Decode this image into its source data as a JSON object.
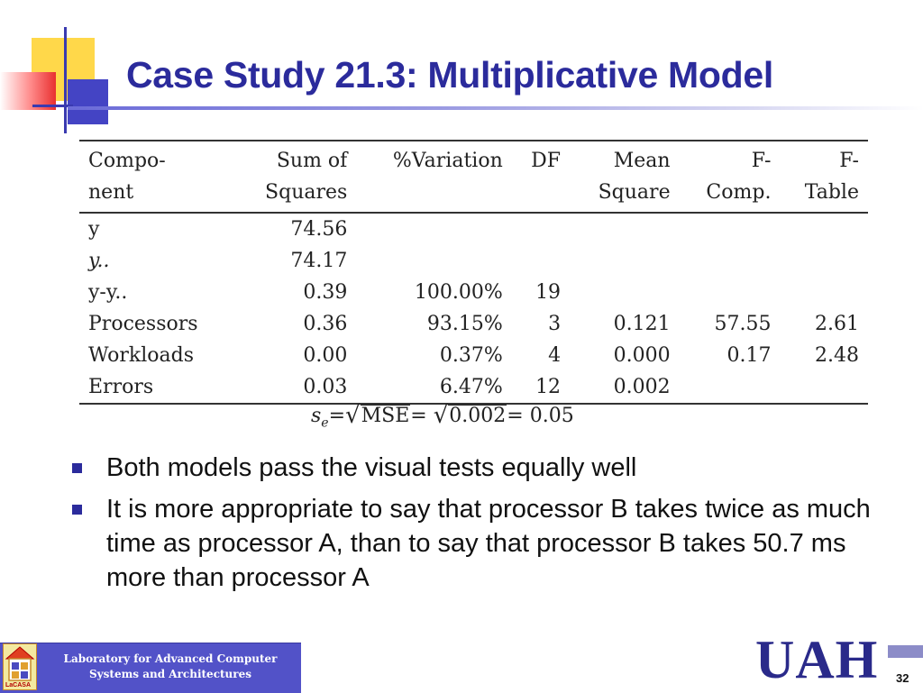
{
  "slide": {
    "title": "Case Study 21.3: Multiplicative Model",
    "page_number": "32"
  },
  "table": {
    "headers": [
      [
        "Compo-",
        "nent"
      ],
      [
        "Sum of",
        "Squares"
      ],
      [
        "%Variation",
        ""
      ],
      [
        "DF",
        ""
      ],
      [
        "Mean",
        "Square"
      ],
      [
        "F-",
        "Comp."
      ],
      [
        "F-",
        "Table"
      ]
    ],
    "rows": [
      [
        "y",
        "74.56",
        "",
        "",
        "",
        "",
        ""
      ],
      [
        "y..",
        "74.17",
        "",
        "",
        "",
        "",
        ""
      ],
      [
        "y-y..",
        "0.39",
        "100.00%",
        "19",
        "",
        "",
        ""
      ],
      [
        "Processors",
        "0.36",
        "93.15%",
        "3",
        "0.121",
        "57.55",
        "2.61"
      ],
      [
        "Workloads",
        "0.00",
        "0.37%",
        "4",
        "0.000",
        "0.17",
        "2.48"
      ],
      [
        "Errors",
        "0.03",
        "6.47%",
        "12",
        "0.002",
        "",
        ""
      ]
    ]
  },
  "formula": {
    "lhs_base": "s",
    "lhs_sub": "e",
    "eq1": "=",
    "mse": "MSE",
    "eq2": "= ",
    "value": "0.002",
    "eq3": "= 0.05"
  },
  "bullets": [
    "Both models pass the visual tests equally well",
    "It is more appropriate to say that processor B takes twice as much time as processor A, than to say that processor B takes 50.7 ms more than processor A"
  ],
  "footer": {
    "lab_line1": "Laboratory for Advanced Computer",
    "lab_line2": "Systems and Architectures",
    "logo_text": "LaCASA",
    "uah": "UAH"
  },
  "colors": {
    "title": "#2b2b9c",
    "footer_box": "#5252c8",
    "uah": "#2a2a8a",
    "bullet": "#2b2b9c"
  },
  "icons": [
    "bullet-square-icon",
    "lacasa-logo-icon"
  ]
}
